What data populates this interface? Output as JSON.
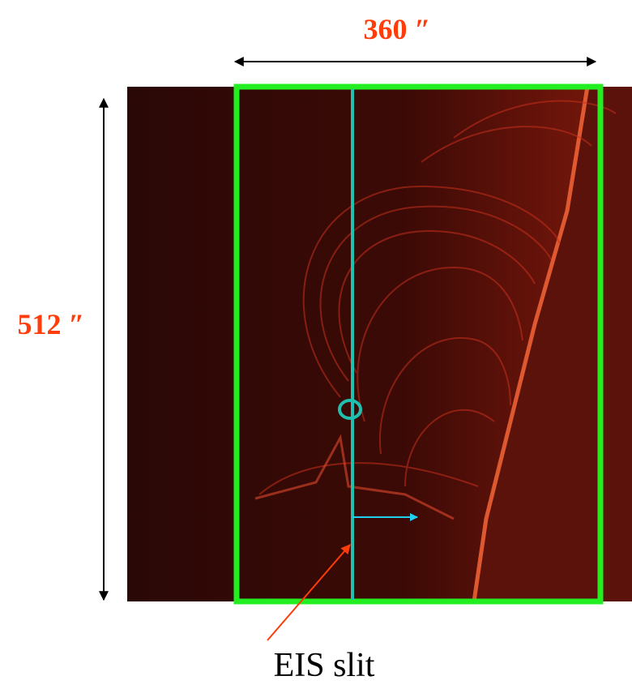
{
  "annotations": {
    "width_label": "360 ″",
    "height_label": "512 ″",
    "slit_label": "EIS slit"
  }
}
